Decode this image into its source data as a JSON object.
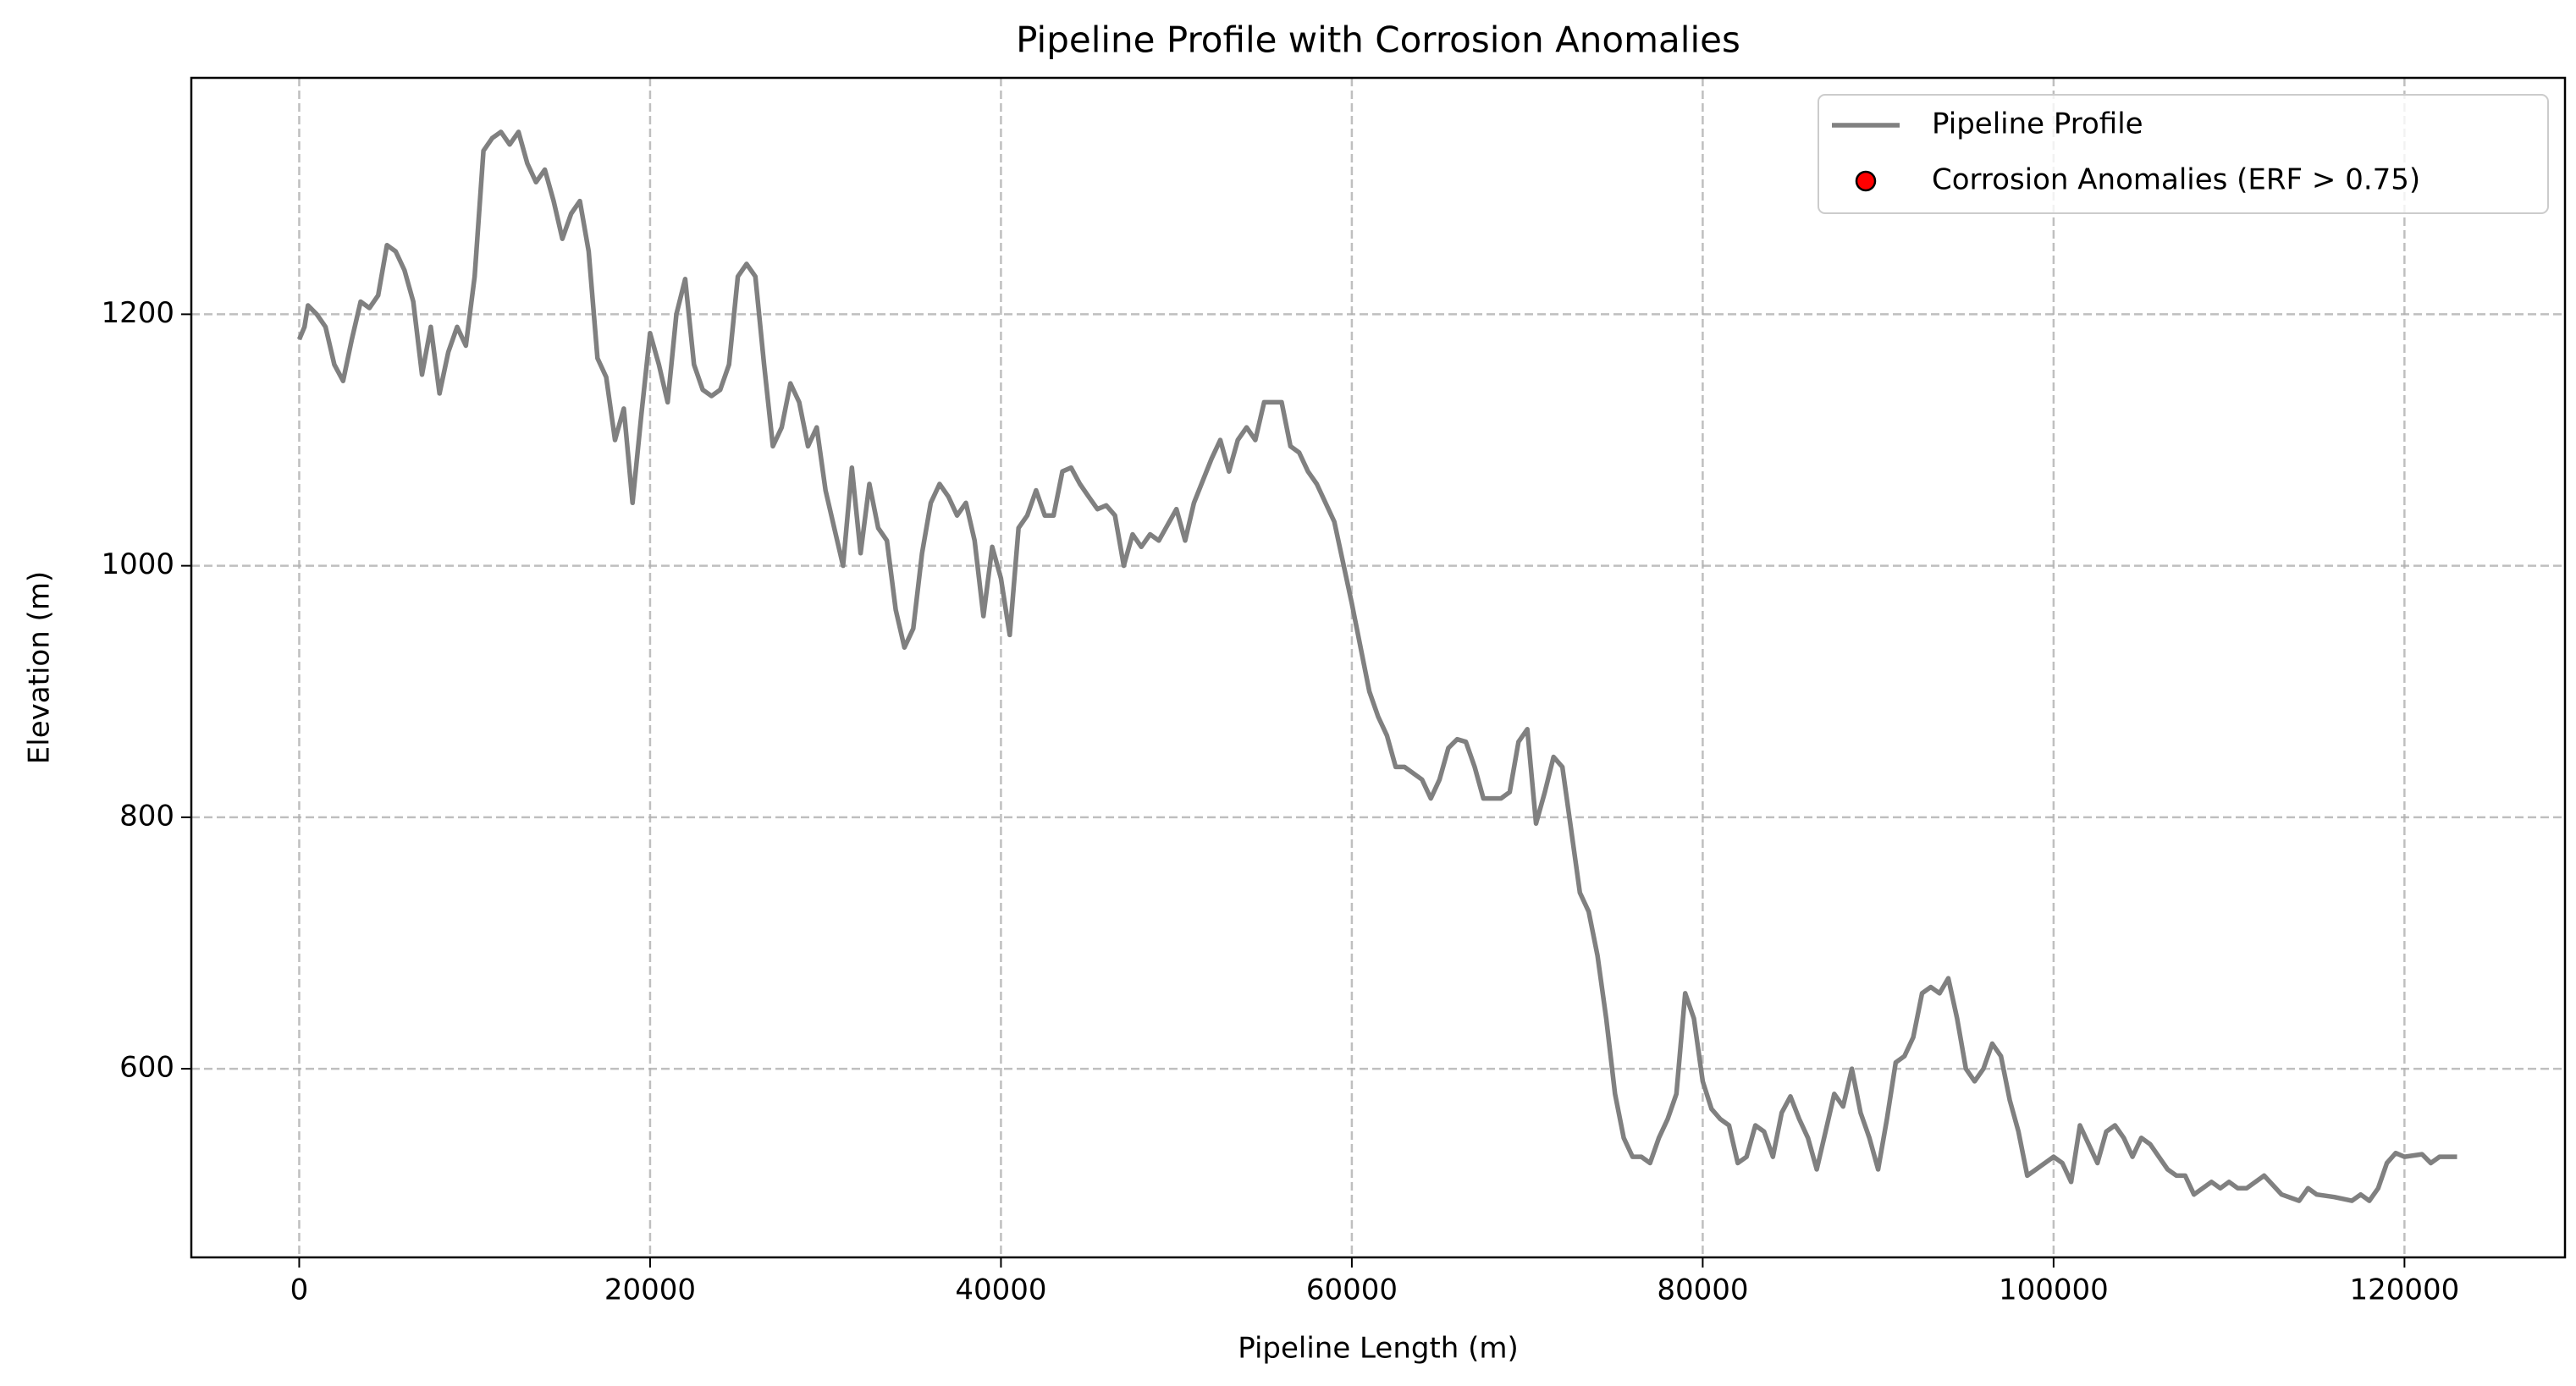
{
  "chart_data": {
    "type": "line",
    "title": "Pipeline Profile with Corrosion Anomalies",
    "xlabel": "Pipeline Length (m)",
    "ylabel": "Elevation (m)",
    "xlim": [
      -6150,
      129150
    ],
    "ylim": [
      450,
      1388
    ],
    "xticks": [
      0,
      20000,
      40000,
      60000,
      80000,
      100000,
      120000
    ],
    "yticks": [
      600,
      800,
      1000,
      1200
    ],
    "grid": true,
    "legend": "upper right",
    "series": [
      {
        "name": "Pipeline Profile",
        "color": "#808080",
        "x": [
          0,
          300,
          500,
          1000,
          1500,
          2000,
          2500,
          3000,
          3500,
          4000,
          4500,
          5000,
          5500,
          6000,
          6500,
          7000,
          7500,
          8000,
          8500,
          9000,
          9500,
          10000,
          10500,
          11000,
          11500,
          12000,
          12500,
          13000,
          13500,
          14000,
          14500,
          15000,
          15500,
          16000,
          16500,
          17000,
          17500,
          18000,
          18500,
          19000,
          19500,
          20000,
          20500,
          21000,
          21500,
          22000,
          22500,
          23000,
          23500,
          24000,
          24500,
          25000,
          25500,
          26000,
          26500,
          27000,
          27500,
          28000,
          28500,
          29000,
          29500,
          30000,
          30500,
          31000,
          31500,
          32000,
          32500,
          33000,
          33500,
          34000,
          34500,
          35000,
          35500,
          36000,
          36500,
          37000,
          37500,
          38000,
          38500,
          39000,
          39500,
          40000,
          40500,
          41000,
          41500,
          42000,
          42500,
          43000,
          43500,
          44000,
          44500,
          45000,
          45500,
          46000,
          46500,
          47000,
          47500,
          48000,
          48500,
          49000,
          50000,
          50500,
          51000,
          52000,
          52500,
          53000,
          53500,
          54000,
          54500,
          55000,
          55500,
          56000,
          56500,
          57000,
          57500,
          58000,
          59000,
          60000,
          61000,
          61500,
          62000,
          62500,
          63000,
          64000,
          64500,
          65000,
          65500,
          66000,
          66500,
          67000,
          67500,
          68000,
          68500,
          69000,
          69500,
          70000,
          70500,
          71000,
          71500,
          72000,
          72500,
          73000,
          73500,
          74000,
          74500,
          75000,
          75500,
          76000,
          76500,
          77000,
          77500,
          78000,
          78500,
          79000,
          79500,
          80000,
          80500,
          81000,
          81500,
          82000,
          82500,
          83000,
          83500,
          84000,
          84500,
          85000,
          85500,
          86000,
          86500,
          87000,
          87500,
          88000,
          88500,
          89000,
          89500,
          90000,
          90500,
          91000,
          91500,
          92000,
          92500,
          93000,
          93500,
          94000,
          94500,
          95000,
          95500,
          96000,
          96500,
          97000,
          97500,
          98000,
          98500,
          99000,
          100000,
          100500,
          101000,
          101500,
          102000,
          102500,
          103000,
          103500,
          104000,
          104500,
          105000,
          105500,
          106000,
          106500,
          107000,
          107500,
          108000,
          109000,
          109500,
          110000,
          110500,
          111000,
          112000,
          113000,
          114000,
          114500,
          115000,
          116000,
          117000,
          117500,
          118000,
          118500,
          119000,
          119500,
          120000,
          121000,
          121500,
          122000,
          122500,
          123000
        ],
        "values": [
          1180,
          1190,
          1207,
          1200,
          1190,
          1160,
          1147,
          1180,
          1210,
          1205,
          1215,
          1255,
          1250,
          1235,
          1210,
          1152,
          1190,
          1137,
          1170,
          1190,
          1175,
          1230,
          1330,
          1340,
          1345,
          1335,
          1345,
          1320,
          1305,
          1315,
          1290,
          1260,
          1280,
          1290,
          1250,
          1165,
          1150,
          1100,
          1125,
          1050,
          1120,
          1185,
          1160,
          1130,
          1200,
          1228,
          1160,
          1140,
          1135,
          1140,
          1160,
          1230,
          1240,
          1230,
          1160,
          1095,
          1110,
          1145,
          1130,
          1095,
          1110,
          1060,
          1030,
          1000,
          1078,
          1010,
          1065,
          1030,
          1020,
          965,
          935,
          950,
          1010,
          1050,
          1065,
          1055,
          1040,
          1050,
          1020,
          960,
          1015,
          990,
          945,
          1030,
          1040,
          1060,
          1040,
          1040,
          1075,
          1078,
          1065,
          1055,
          1045,
          1048,
          1040,
          1000,
          1025,
          1015,
          1025,
          1020,
          1045,
          1020,
          1050,
          1085,
          1100,
          1075,
          1100,
          1110,
          1100,
          1130,
          1130,
          1130,
          1095,
          1090,
          1075,
          1065,
          1035,
          970,
          900,
          880,
          865,
          840,
          840,
          830,
          815,
          830,
          855,
          862,
          860,
          840,
          815,
          815,
          815,
          820,
          860,
          870,
          795,
          820,
          848,
          840,
          790,
          740,
          725,
          690,
          640,
          580,
          545,
          530,
          530,
          525,
          545,
          560,
          580,
          660,
          640,
          590,
          568,
          560,
          555,
          525,
          530,
          555,
          550,
          530,
          565,
          578,
          560,
          545,
          520,
          550,
          580,
          570,
          600,
          565,
          545,
          520,
          560,
          605,
          610,
          625,
          660,
          665,
          660,
          672,
          640,
          600,
          590,
          600,
          620,
          610,
          575,
          550,
          515,
          520,
          530,
          525,
          510,
          555,
          540,
          525,
          550,
          555,
          545,
          530,
          545,
          540,
          530,
          520,
          515,
          515,
          500,
          510,
          505,
          510,
          505,
          505,
          515,
          500,
          495,
          505,
          500,
          498,
          495,
          500,
          495,
          505,
          525,
          533,
          530,
          532,
          525,
          530,
          530,
          530
        ]
      },
      {
        "name": "Corrosion Anomalies (ERF > 0.75)",
        "type": "scatter",
        "color": "#ff0000",
        "x": [],
        "values": []
      }
    ]
  }
}
